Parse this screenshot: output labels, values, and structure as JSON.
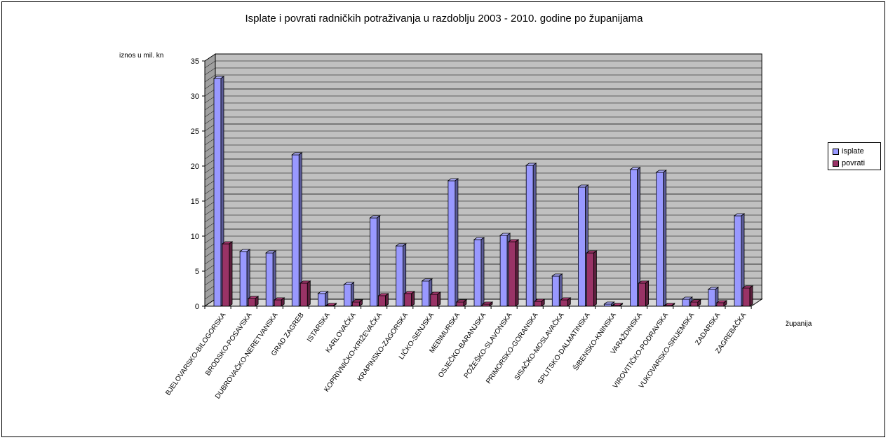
{
  "chart_data": {
    "type": "bar",
    "title": "Isplate i povrati radničkih potraživanja u razdoblju 2003 - 2010. godine po županijama",
    "ylabel": "iznos u mil. kn",
    "xlabel": "županija",
    "ylim": [
      0,
      35
    ],
    "yticks": [
      0,
      5,
      10,
      15,
      20,
      25,
      30,
      35
    ],
    "grid": true,
    "legend_position": "right",
    "categories": [
      "BJELOVARSKO-BILOGORSKA",
      "BRODSKO-POSAVSKA",
      "DUBROVAČKO-NERETVANSKA",
      "GRAD ZAGREB",
      "ISTARSKA",
      "KARLOVAČKA",
      "KOPRIVNIČKO-KRIŽEVAČKA",
      "KRAPINSKO-ZAGORSKA",
      "LIČKO-SENJSKA",
      "MEĐIMURSKA",
      "OSJEČKO-BARANJSKA",
      "POŽEŠKO-SLAVONSKA",
      "PRIMORSKO-GORANSKA",
      "SISAČKO-MOSLAVAČKA",
      "SPLITSKO-DALMATINSKA",
      "ŠIBENSKO-KNINSKA",
      "VARAŽDINSKA",
      "VIROVITIČKO-PODRAVSKA",
      "VUKOVARSKO-SRIJEMSKA",
      "ZADARSKA",
      "ZAGREBAČKA"
    ],
    "series": [
      {
        "name": "isplate",
        "color": "#9999ff",
        "values": [
          32.5,
          7.8,
          7.6,
          21.6,
          1.8,
          3.1,
          12.6,
          8.6,
          3.6,
          17.9,
          9.5,
          10.1,
          20.1,
          4.3,
          17.0,
          0.3,
          19.5,
          19.1,
          1.0,
          2.4,
          12.9
        ]
      },
      {
        "name": "povrati",
        "color": "#993366",
        "values": [
          8.9,
          1.1,
          0.9,
          3.3,
          0.1,
          0.6,
          1.5,
          1.8,
          1.7,
          0.6,
          0.3,
          9.2,
          0.7,
          0.9,
          7.6,
          0.1,
          3.3,
          0.1,
          0.6,
          0.5,
          2.6
        ]
      }
    ]
  }
}
